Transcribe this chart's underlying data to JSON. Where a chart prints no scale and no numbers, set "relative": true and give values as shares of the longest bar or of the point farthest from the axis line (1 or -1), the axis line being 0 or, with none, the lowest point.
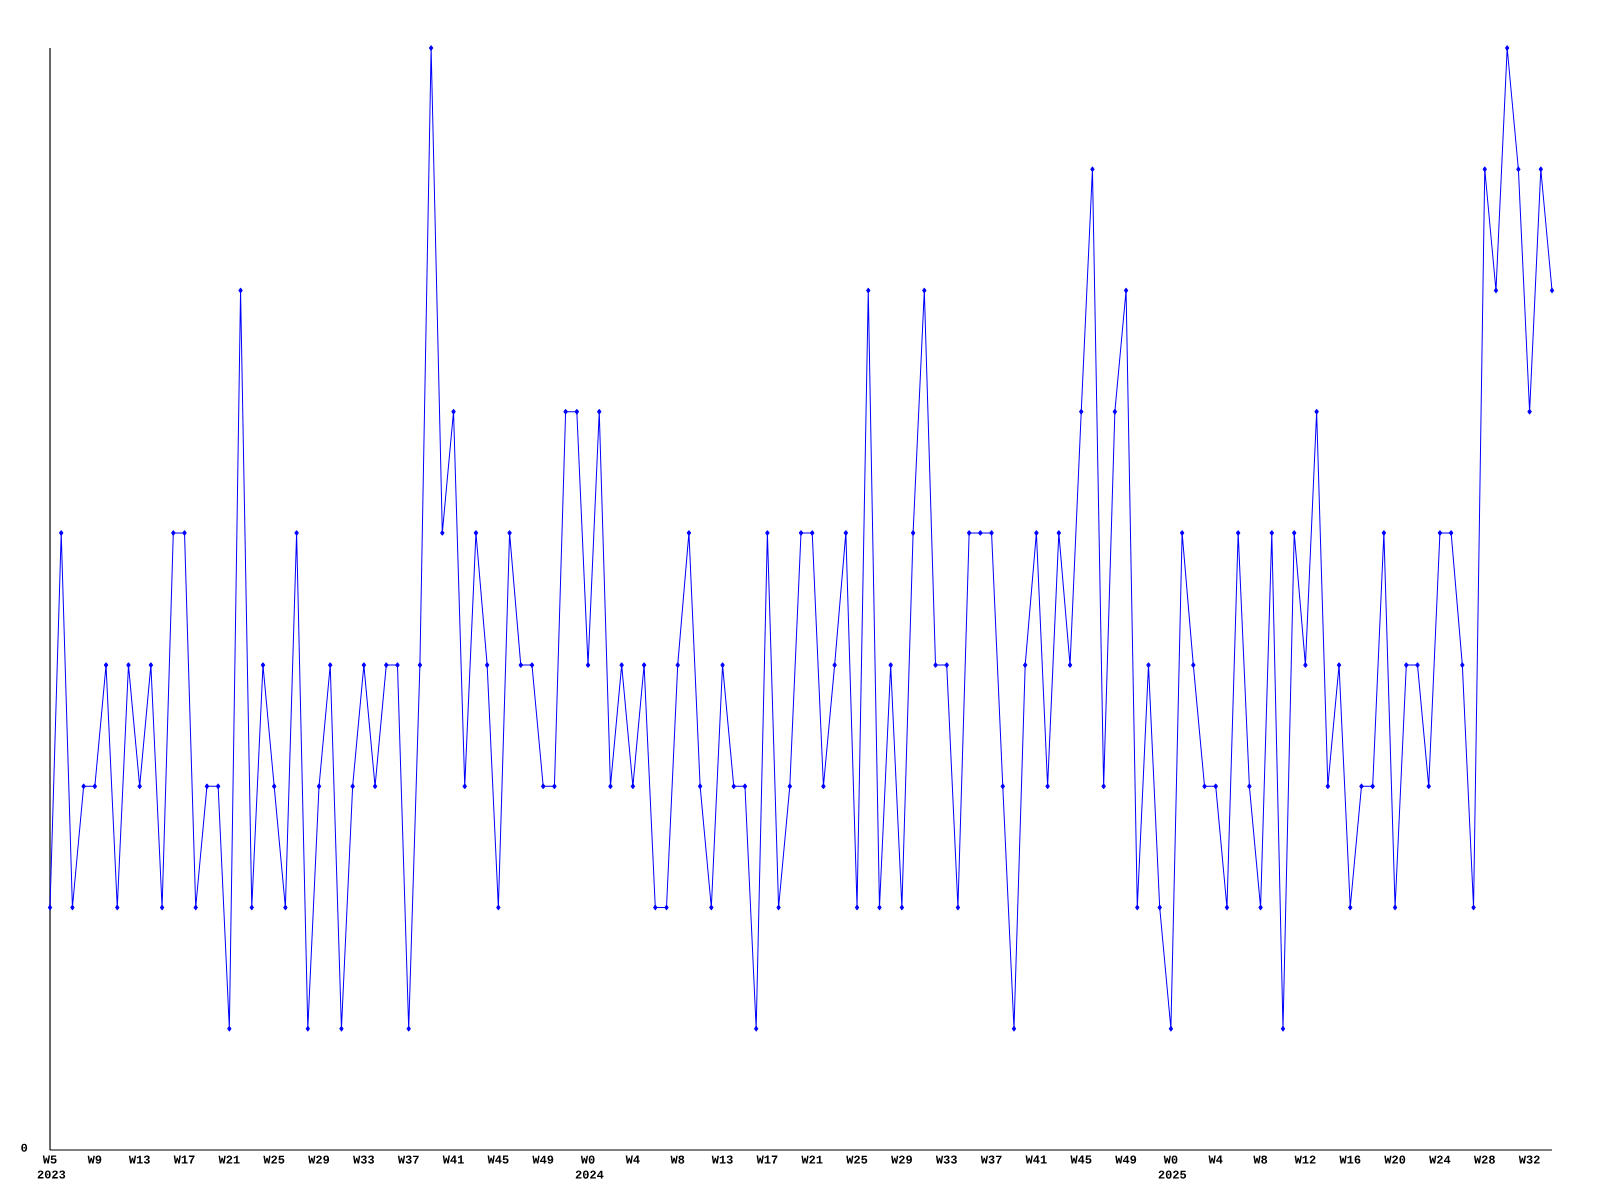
{
  "chart_data": {
    "type": "line",
    "relative": true,
    "color": "#0000ff",
    "marker": "diamond",
    "annotations": [
      "0"
    ],
    "categories": [
      "W5 2023",
      null,
      null,
      null,
      "W9",
      null,
      null,
      null,
      "W13",
      null,
      null,
      null,
      "W17",
      null,
      null,
      null,
      "W21",
      null,
      null,
      null,
      "W25",
      null,
      null,
      null,
      "W29",
      null,
      null,
      null,
      "W33",
      null,
      null,
      null,
      "W37",
      null,
      null,
      null,
      "W41",
      null,
      null,
      null,
      "W45",
      null,
      null,
      null,
      "W49",
      null,
      null,
      null,
      "W0 2024",
      null,
      null,
      null,
      "W4",
      null,
      null,
      null,
      "W8",
      null,
      null,
      null,
      "W13",
      null,
      null,
      null,
      "W17",
      null,
      null,
      null,
      "W21",
      null,
      null,
      null,
      "W25",
      null,
      null,
      null,
      "W29",
      null,
      null,
      null,
      "W33",
      null,
      null,
      null,
      "W37",
      null,
      null,
      null,
      "W41",
      null,
      null,
      null,
      "W45",
      null,
      null,
      null,
      "W49",
      null,
      null,
      null,
      "W0 2025",
      null,
      null,
      null,
      "W4",
      null,
      null,
      null,
      "W8",
      null,
      null,
      null,
      "W12",
      null,
      null,
      null,
      "W16",
      null,
      null,
      null,
      "W20",
      null,
      null,
      null,
      "W24",
      null,
      null,
      null,
      "W28",
      null,
      null,
      null,
      "W32",
      null,
      null
    ],
    "values": [
      0.22,
      0.56,
      0.22,
      0.33,
      0.33,
      0.44,
      0.22,
      0.44,
      0.33,
      0.44,
      0.22,
      0.56,
      0.56,
      0.22,
      0.33,
      0.33,
      0.11,
      0.78,
      0.22,
      0.44,
      0.33,
      0.22,
      0.56,
      0.11,
      0.33,
      0.44,
      0.11,
      0.33,
      0.44,
      0.33,
      0.44,
      0.44,
      0.11,
      0.44,
      1,
      0.56,
      0.67,
      0.33,
      0.56,
      0.44,
      0.22,
      0.56,
      0.44,
      0.44,
      0.33,
      0.33,
      0.67,
      0.67,
      0.44,
      0.67,
      0.33,
      0.44,
      0.33,
      0.44,
      0.22,
      0.22,
      0.44,
      0.56,
      0.33,
      0.22,
      0.44,
      0.33,
      0.33,
      0.11,
      0.56,
      0.22,
      0.33,
      0.56,
      0.56,
      0.33,
      0.44,
      0.56,
      0.22,
      0.78,
      0.22,
      0.44,
      0.22,
      0.56,
      0.78,
      0.44,
      0.44,
      0.22,
      0.56,
      0.56,
      0.56,
      0.33,
      0.11,
      0.44,
      0.56,
      0.33,
      0.56,
      0.44,
      0.67,
      0.89,
      0.33,
      0.67,
      0.78,
      0.22,
      0.44,
      0.22,
      0.11,
      0.56,
      0.44,
      0.33,
      0.33,
      0.22,
      0.56,
      0.33,
      0.22,
      0.56,
      0.11,
      0.56,
      0.44,
      0.67,
      0.33,
      0.44,
      0.22,
      0.33,
      0.33,
      0.56,
      0.22,
      0.44,
      0.44,
      0.33,
      0.56,
      0.56,
      0.44,
      0.22,
      0.89,
      0.78,
      1,
      0.89,
      0.67,
      0.89,
      0.78
    ]
  }
}
